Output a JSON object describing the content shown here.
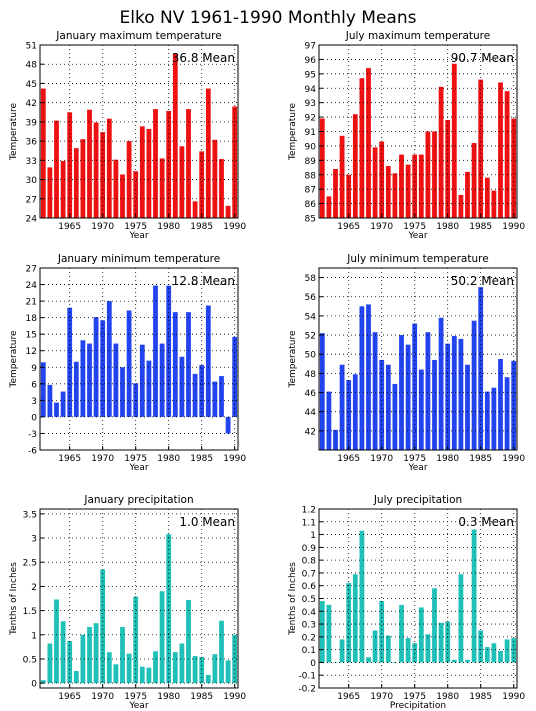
{
  "figure_title": "Elko NV   1961-1990 Monthly Means",
  "chart_data": [
    {
      "type": "bar",
      "title": "January maximum temperature",
      "xlabel": "Year",
      "ylabel": "Temperature",
      "mean_label": "36.8 Mean",
      "color": "#ee1111",
      "ylim": [
        24,
        51
      ],
      "yticks": [
        "24",
        "27",
        "30",
        "33",
        "36",
        "39",
        "42",
        "45",
        "48",
        "51"
      ],
      "xlim": [
        1961,
        1990
      ],
      "xticks": [
        "1965",
        "1970",
        "1975",
        "1980",
        "1985",
        "1990"
      ],
      "x": [
        1961,
        1962,
        1963,
        1964,
        1965,
        1966,
        1967,
        1968,
        1969,
        1970,
        1971,
        1972,
        1973,
        1974,
        1975,
        1976,
        1977,
        1978,
        1979,
        1980,
        1981,
        1982,
        1983,
        1984,
        1985,
        1986,
        1987,
        1988,
        1989,
        1990
      ],
      "values": [
        44.2,
        31.9,
        39.2,
        32.9,
        40.5,
        34.9,
        36.3,
        40.9,
        38.9,
        37.4,
        39.5,
        33.1,
        30.8,
        36.0,
        31.3,
        38.3,
        37.9,
        41.0,
        33.3,
        40.7,
        49.6,
        35.2,
        41.0,
        26.6,
        34.4,
        44.2,
        36.2,
        33.2,
        25.9,
        41.4
      ]
    },
    {
      "type": "bar",
      "title": "July maximum temperature",
      "xlabel": "Year",
      "ylabel": "Temperature",
      "mean_label": "90.7 Mean",
      "color": "#ee1111",
      "ylim": [
        85,
        97
      ],
      "yticks": [
        "85",
        "86",
        "87",
        "88",
        "89",
        "90",
        "91",
        "92",
        "93",
        "94",
        "95",
        "96",
        "97"
      ],
      "xlim": [
        1961,
        1990
      ],
      "xticks": [
        "1965",
        "1970",
        "1975",
        "1980",
        "1985",
        "1990"
      ],
      "x": [
        1961,
        1962,
        1963,
        1964,
        1965,
        1966,
        1967,
        1968,
        1969,
        1970,
        1971,
        1972,
        1973,
        1974,
        1975,
        1976,
        1977,
        1978,
        1979,
        1980,
        1981,
        1982,
        1983,
        1984,
        1985,
        1986,
        1987,
        1988,
        1989,
        1990
      ],
      "values": [
        91.9,
        86.5,
        88.4,
        90.7,
        88.0,
        92.2,
        94.7,
        95.4,
        89.9,
        90.3,
        88.6,
        88.1,
        89.4,
        88.7,
        89.4,
        89.4,
        91.0,
        91.0,
        94.1,
        91.8,
        95.7,
        86.6,
        88.2,
        90.2,
        94.6,
        87.8,
        86.9,
        94.4,
        93.8,
        91.9
      ]
    },
    {
      "type": "bar",
      "title": "January minimum temperature",
      "xlabel": "Year",
      "ylabel": "Temperature",
      "mean_label": "12.8 Mean",
      "color": "#2244ee",
      "ylim": [
        -6,
        27
      ],
      "yticks": [
        "-6",
        "-3",
        "0",
        "3",
        "6",
        "9",
        "12",
        "15",
        "18",
        "21",
        "24",
        "27"
      ],
      "xlim": [
        1961,
        1990
      ],
      "xticks": [
        "1965",
        "1970",
        "1975",
        "1980",
        "1985",
        "1990"
      ],
      "x": [
        1961,
        1962,
        1963,
        1964,
        1965,
        1966,
        1967,
        1968,
        1969,
        1970,
        1971,
        1972,
        1973,
        1974,
        1975,
        1976,
        1977,
        1978,
        1979,
        1980,
        1981,
        1982,
        1983,
        1984,
        1985,
        1986,
        1987,
        1988,
        1989,
        1990
      ],
      "values": [
        9.9,
        5.8,
        2.6,
        4.6,
        19.8,
        10.0,
        13.9,
        13.3,
        18.1,
        17.5,
        21.0,
        13.3,
        9.0,
        19.3,
        6.1,
        13.1,
        10.2,
        23.8,
        13.3,
        23.8,
        19.0,
        10.9,
        19.0,
        7.8,
        9.4,
        20.2,
        6.4,
        7.4,
        -3.0,
        14.5
      ]
    },
    {
      "type": "bar",
      "title": "July minimum temperature",
      "xlabel": "Year",
      "ylabel": "Temperature",
      "mean_label": "50.2 Mean",
      "color": "#2244ee",
      "ylim": [
        40,
        59
      ],
      "yticks": [
        "42",
        "44",
        "46",
        "48",
        "50",
        "52",
        "54",
        "56",
        "58"
      ],
      "xlim": [
        1961,
        1990
      ],
      "xticks": [
        "1965",
        "1970",
        "1975",
        "1980",
        "1985",
        "1990"
      ],
      "x": [
        1961,
        1962,
        1963,
        1964,
        1965,
        1966,
        1967,
        1968,
        1969,
        1970,
        1971,
        1972,
        1973,
        1974,
        1975,
        1976,
        1977,
        1978,
        1979,
        1980,
        1981,
        1982,
        1983,
        1984,
        1985,
        1986,
        1987,
        1988,
        1989,
        1990
      ],
      "values": [
        52.2,
        46.1,
        42.1,
        48.9,
        47.3,
        47.9,
        55.0,
        55.2,
        52.3,
        49.4,
        48.9,
        46.9,
        52.0,
        51.0,
        53.2,
        48.4,
        52.3,
        49.4,
        53.8,
        51.1,
        51.9,
        51.6,
        48.9,
        53.5,
        57.0,
        46.1,
        46.5,
        49.5,
        47.6,
        49.3
      ]
    },
    {
      "type": "bar",
      "title": "January precipitation",
      "xlabel": "Year",
      "ylabel": "Tenths of Inches",
      "mean_label": "1.0 Mean",
      "color": "#1fc0b8",
      "ylim": [
        -0.1,
        3.6
      ],
      "yticks": [
        "0",
        "0.5",
        "1",
        "1.5",
        "2",
        "2.5",
        "3",
        "3.5"
      ],
      "xlim": [
        1961,
        1990
      ],
      "xticks": [
        "1965",
        "1970",
        "1975",
        "1980",
        "1985",
        "1990"
      ],
      "x": [
        1961,
        1962,
        1963,
        1964,
        1965,
        1966,
        1967,
        1968,
        1969,
        1970,
        1971,
        1972,
        1973,
        1974,
        1975,
        1976,
        1977,
        1978,
        1979,
        1980,
        1981,
        1982,
        1983,
        1984,
        1985,
        1986,
        1987,
        1988,
        1989,
        1990
      ],
      "values": [
        0.06,
        0.82,
        1.73,
        1.28,
        0.87,
        0.25,
        1.0,
        1.16,
        1.24,
        2.35,
        0.64,
        0.39,
        1.16,
        0.61,
        1.79,
        0.34,
        0.32,
        0.66,
        1.9,
        3.08,
        0.64,
        0.82,
        1.72,
        0.56,
        0.54,
        0.17,
        0.6,
        1.29,
        0.47,
        1.0
      ]
    },
    {
      "type": "bar",
      "title": "July precipitation",
      "xlabel": "Precipitation",
      "ylabel": "Tenths of Inches",
      "mean_label": "0.3 Mean",
      "color": "#1fc0b8",
      "ylim": [
        -0.2,
        1.2
      ],
      "yticks": [
        "-0.2",
        "-0.1",
        "0",
        "0.1",
        "0.2",
        "0.3",
        "0.4",
        "0.5",
        "0.6",
        "0.7",
        "0.8",
        "0.9",
        "1",
        "1.1",
        "1.2"
      ],
      "xlim": [
        1961,
        1990
      ],
      "xticks": [
        "1965",
        "1970",
        "1975",
        "1980",
        "1985",
        "1990"
      ],
      "x": [
        1961,
        1962,
        1963,
        1964,
        1965,
        1966,
        1967,
        1968,
        1969,
        1970,
        1971,
        1972,
        1973,
        1974,
        1975,
        1976,
        1977,
        1978,
        1979,
        1980,
        1981,
        1982,
        1983,
        1984,
        1985,
        1986,
        1987,
        1988,
        1989,
        1990
      ],
      "values": [
        0.48,
        0.45,
        0.0,
        0.18,
        0.62,
        0.69,
        1.03,
        0.04,
        0.25,
        0.48,
        0.21,
        0.0,
        0.45,
        0.19,
        0.15,
        0.43,
        0.22,
        0.58,
        0.31,
        0.32,
        0.02,
        0.69,
        0.02,
        1.04,
        0.25,
        0.12,
        0.15,
        0.09,
        0.18,
        0.19
      ]
    }
  ]
}
